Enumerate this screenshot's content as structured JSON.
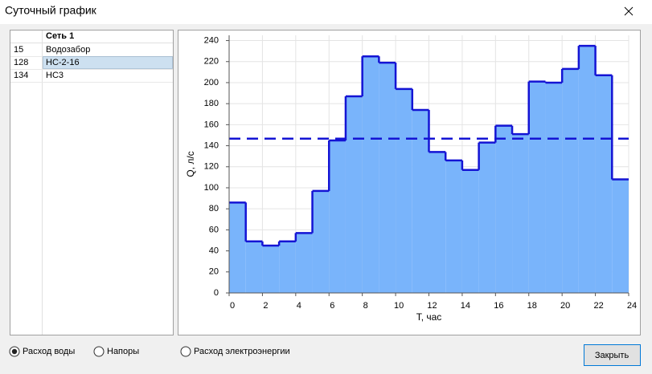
{
  "window": {
    "title": "Суточный график"
  },
  "table": {
    "header": "Сеть 1",
    "rows": [
      [
        "15",
        "Водозабор"
      ],
      [
        "128",
        "НС-2-16"
      ],
      [
        "134",
        "НС3"
      ]
    ],
    "selected_row": 1
  },
  "chart_data": {
    "type": "step",
    "xlabel": "T, час",
    "ylabel": "Q, л/с",
    "x": [
      0,
      1,
      2,
      3,
      4,
      5,
      6,
      7,
      8,
      9,
      10,
      11,
      12,
      13,
      14,
      15,
      16,
      17,
      18,
      19,
      20,
      21,
      22,
      23
    ],
    "values": [
      86,
      49,
      45,
      49,
      57,
      97,
      145,
      187,
      225,
      219,
      194,
      174,
      134,
      126,
      117,
      143,
      159,
      151,
      201,
      200,
      213,
      235,
      207,
      108
    ],
    "color": "#79b4fb",
    "line_color": "#1414d4",
    "mean": 146.7,
    "xlim": [
      0,
      24
    ],
    "xticks": [
      0,
      2,
      4,
      6,
      8,
      10,
      12,
      14,
      16,
      18,
      20,
      22,
      24
    ],
    "ylim": [
      0,
      245
    ],
    "yticks": [
      0,
      20,
      40,
      60,
      80,
      100,
      120,
      140,
      160,
      180,
      200,
      220,
      240
    ],
    "grid": true
  },
  "options": [
    {
      "label": "Расход воды",
      "checked": true
    },
    {
      "label": "Напоры",
      "checked": false
    },
    {
      "label": "Расход электроэнергии",
      "checked": false
    }
  ],
  "button": {
    "label": "Закрыть"
  }
}
